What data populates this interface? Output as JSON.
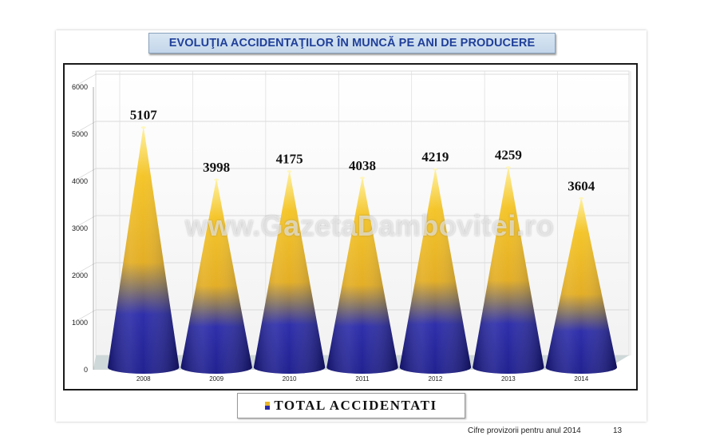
{
  "chart_data": {
    "type": "bar",
    "title": "EVOLUŢIA ACCIDENTAŢILOR ÎN MUNCĂ PE ANI DE PRODUCERE",
    "categories": [
      "2008",
      "2009",
      "2010",
      "2011",
      "2012",
      "2013",
      "2014"
    ],
    "series": [
      {
        "name": "TOTAL ACCIDENTATI",
        "values": [
          5107,
          3998,
          4175,
          4038,
          4219,
          4259,
          3604
        ]
      }
    ],
    "ylim": [
      0,
      6000
    ],
    "yticks": [
      "0",
      "1000",
      "2000",
      "3000",
      "4000",
      "5000",
      "6000"
    ],
    "grid": true,
    "legend_position": "bottom"
  },
  "footer": {
    "note": "Cifre provizorii pentru anul 2014",
    "page": "13"
  },
  "watermark": "www.GazetaDambovitei.ro",
  "colors": {
    "cone_top": "#f5c518",
    "cone_bottom": "#1a1aa0",
    "title_text": "#1f3f9a"
  }
}
